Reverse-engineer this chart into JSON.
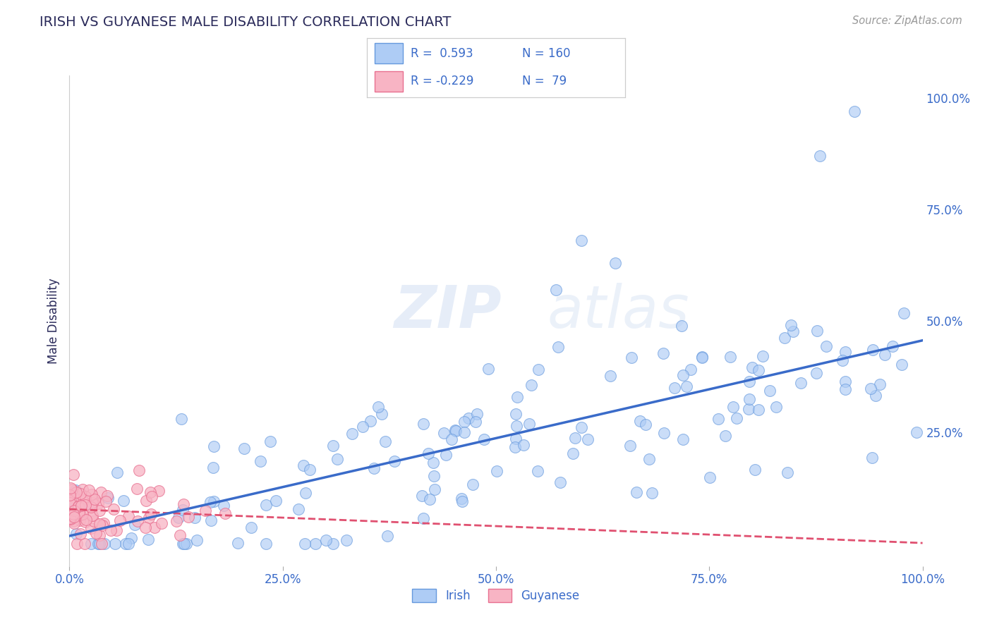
{
  "title": "IRISH VS GUYANESE MALE DISABILITY CORRELATION CHART",
  "source": "Source: ZipAtlas.com",
  "ylabel": "Male Disability",
  "irish_R": 0.593,
  "irish_N": 160,
  "guyanese_R": -0.229,
  "guyanese_N": 79,
  "irish_color": "#aeccf5",
  "irish_edge_color": "#6699dd",
  "irish_line_color": "#3a6bc9",
  "guyanese_color": "#f8b4c4",
  "guyanese_edge_color": "#e87090",
  "guyanese_line_color": "#e05070",
  "background_color": "#ffffff",
  "title_color": "#2a2a5a",
  "axis_label_color": "#3a6bc9",
  "watermark_zip": "ZIP",
  "watermark_atlas": "atlas",
  "xlim": [
    0.0,
    1.0
  ],
  "ylim": [
    -0.05,
    1.05
  ],
  "x_ticks": [
    0.0,
    0.25,
    0.5,
    0.75,
    1.0
  ],
  "x_tick_labels": [
    "0.0%",
    "25.0%",
    "50.0%",
    "75.0%",
    "100.0%"
  ],
  "y_ticks": [
    0.0,
    0.25,
    0.5,
    0.75,
    1.0
  ],
  "y_tick_labels": [
    "",
    "25.0%",
    "50.0%",
    "75.0%",
    "100.0%"
  ]
}
